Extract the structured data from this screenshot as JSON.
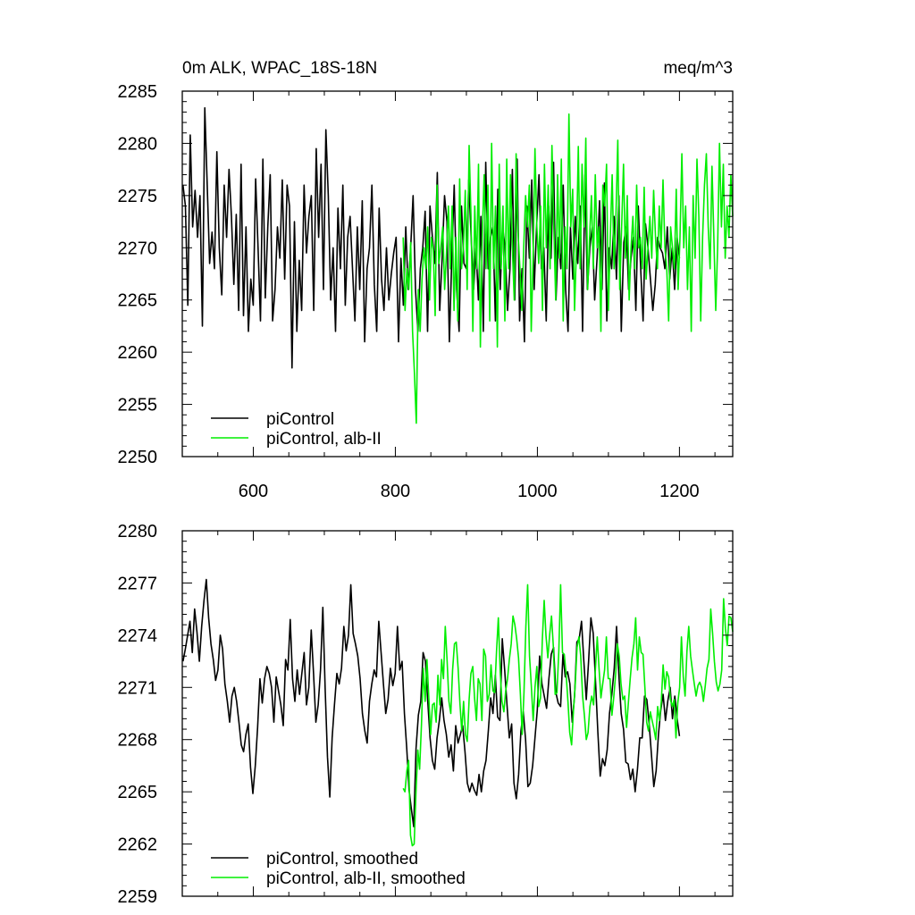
{
  "chart_data": [
    {
      "type": "line",
      "title_left": "0m ALK, WPAC_18S-18N",
      "title_right": "meq/m^3",
      "xlabel": "",
      "ylabel": "",
      "xlim": [
        500,
        1275
      ],
      "ylim": [
        2250,
        2285
      ],
      "x_ticks": [
        600,
        800,
        1000,
        1200
      ],
      "x_tick_labels": [
        "600",
        "800",
        "1000",
        "1200"
      ],
      "y_ticks": [
        2250,
        2255,
        2260,
        2265,
        2270,
        2275,
        2280,
        2285
      ],
      "y_tick_labels": [
        "2250",
        "2255",
        "2260",
        "2265",
        "2270",
        "2275",
        "2280",
        "2285"
      ],
      "grid": false,
      "legend_position": "bottom-left",
      "series": [
        {
          "name": "piControl",
          "color": "#000000",
          "x_start": 501,
          "x_step": 3,
          "values": [
            2276,
            2274,
            2264.5,
            2280.8,
            2272,
            2275.5,
            2271,
            2275,
            2262.5,
            2283.4,
            2276,
            2268.5,
            2271.5,
            2268,
            2279.2,
            2270,
            2265.5,
            2276,
            2271,
            2277.5,
            2273,
            2266.5,
            2273.2,
            2264,
            2278,
            2263.5,
            2272,
            2262,
            2267,
            2264.5,
            2276.6,
            2270,
            2263,
            2278.5,
            2265.2,
            2272,
            2277,
            2263,
            2266,
            2272,
            2269,
            2276.5,
            2267,
            2276,
            2274,
            2258.5,
            2272.5,
            2262,
            2268.8,
            2264,
            2276,
            2269.5,
            2273,
            2275,
            2264,
            2279.5,
            2271,
            2278,
            2266,
            2281.3,
            2275,
            2265,
            2270,
            2262,
            2273.8,
            2268,
            2276,
            2264.5,
            2271,
            2273,
            2268,
            2263,
            2272,
            2266,
            2274.5,
            2261,
            2268,
            2270,
            2276,
            2266.5,
            2262,
            2273.8,
            2267,
            2264,
            2270,
            2265,
            2267.5,
            2269.5,
            2271,
            2261,
            2269,
            2264.5,
            2272,
            2266,
            2270,
            2275,
            2266,
            2262,
            2268,
            2270,
            2273.5,
            2262,
            2274,
            2271,
            2268.5,
            2277.2,
            2264,
            2269,
            2275,
            2272.5,
            2261,
            2269,
            2276,
            2266,
            2262,
            2274,
            2268.5,
            2268,
            2276.5,
            2271,
            2266,
            2270,
            2265,
            2273,
            2262,
            2278.2,
            2268,
            2271,
            2272,
            2263,
            2275.6,
            2266,
            2272,
            2270,
            2264,
            2268,
            2277.5,
            2265,
            2278.5,
            2263,
            2268,
            2261,
            2274,
            2269,
            2276.5,
            2266,
            2272,
            2277,
            2268,
            2270,
            2263,
            2274,
            2269,
            2278.2,
            2265,
            2271,
            2268,
            2276,
            2266,
            2262,
            2272,
            2267,
            2273,
            2268.5,
            2274,
            2262,
            2277,
            2266,
            2270,
            2272,
            2265,
            2269,
            2274.5,
            2266,
            2276.2,
            2263,
            2270,
            2268,
            2273,
            2267,
            2275,
            2262,
            2270.5,
            2272,
            2266,
            2269,
            2271,
            2264,
            2274,
            2268,
            2263,
            2272.3,
            2270,
            2267,
            2264,
            2266.5,
            2271,
            2270,
            2269.5,
            2268,
            2272,
            2267,
            2270,
            2266,
            2271,
            2269
          ],
          "x_end": 1200
        },
        {
          "name": "piControl, alb-II",
          "color": "#00ee00",
          "x_start": 811,
          "x_step": 3,
          "values": [
            2271,
            2264,
            2268,
            2266,
            2270.5,
            2262,
            2258,
            2253.2,
            2266,
            2262,
            2267,
            2270,
            2268,
            2272,
            2265,
            2271,
            2269.8,
            2263.5,
            2276,
            2268.5,
            2270,
            2272,
            2266,
            2269.5,
            2274,
            2268,
            2274,
            2264,
            2271,
            2263,
            2276.6,
            2268,
            2270,
            2275.5,
            2266,
            2279.8,
            2273,
            2262,
            2274,
            2268,
            2278,
            2260.5,
            2271,
            2277,
            2268,
            2276,
            2263,
            2280,
            2268,
            2274,
            2260.5,
            2278,
            2268,
            2274,
            2263,
            2278.5,
            2268,
            2277,
            2270,
            2265,
            2279,
            2271.5,
            2268,
            2264,
            2270,
            2275,
            2272,
            2276,
            2262,
            2269,
            2279.5,
            2272,
            2268.5,
            2274,
            2264,
            2278,
            2270,
            2276,
            2268,
            2279.8,
            2272,
            2265,
            2277,
            2269,
            2278.5,
            2263,
            2272,
            2268,
            2282.8,
            2272,
            2275.6,
            2264,
            2270,
            2279.7,
            2268,
            2278,
            2272,
            2280.5,
            2266,
            2271,
            2275,
            2268,
            2277,
            2270,
            2272,
            2262,
            2276,
            2274,
            2278,
            2264,
            2271,
            2277,
            2268,
            2273,
            2280.3,
            2266,
            2272,
            2278,
            2269,
            2275,
            2265,
            2270,
            2273,
            2268,
            2276,
            2270,
            2271,
            2268,
            2275.8,
            2267,
            2270,
            2273,
            2269,
            2275.5,
            2271,
            2268,
            2274,
            2270,
            2276.5,
            2270,
            2268,
            2263,
            2272,
            2270,
            2268,
            2275.6,
            2266,
            2271,
            2279,
            2270,
            2274,
            2266,
            2272,
            2262,
            2275,
            2269,
            2278.5,
            2273,
            2263,
            2271,
            2276,
            2279,
            2272,
            2268,
            2277.8,
            2271,
            2264,
            2270,
            2280,
            2272,
            2278,
            2269,
            2274,
            2271,
            2277,
            2273
          ],
          "x_end": 1275
        }
      ]
    },
    {
      "type": "line",
      "xlim": [
        500,
        1275
      ],
      "ylim": [
        2259,
        2280
      ],
      "x_ticks": [
        600,
        800,
        1000,
        1200
      ],
      "y_ticks": [
        2259,
        2262,
        2265,
        2268,
        2271,
        2274,
        2277,
        2280
      ],
      "y_tick_labels": [
        "2259",
        "2262",
        "2265",
        "2268",
        "2271",
        "2274",
        "2277",
        "2280"
      ],
      "grid": false,
      "legend_position": "bottom-left",
      "series": [
        {
          "name": "piControl, smoothed",
          "color": "#000000",
          "x_start": 501,
          "x_step": 3,
          "values": [
            2272.5,
            2273.2,
            2274,
            2274.8,
            2273,
            2275.5,
            2274.2,
            2272.5,
            2274.5,
            2276,
            2277.2,
            2275,
            2273.5,
            2272.6,
            2271.4,
            2272,
            2274,
            2273.2,
            2271.2,
            2270.2,
            2269,
            2270.5,
            2271,
            2270.2,
            2269,
            2267.7,
            2267.3,
            2268.3,
            2268.9,
            2266.4,
            2264.9,
            2266.5,
            2268.7,
            2271.5,
            2270.1,
            2271.5,
            2272.2,
            2271.8,
            2271,
            2269,
            2271.6,
            2270.8,
            2270,
            2268.8,
            2272.6,
            2272,
            2274.9,
            2271.5,
            2270.2,
            2272,
            2270.6,
            2271.8,
            2273,
            2270,
            2271,
            2274.3,
            2271.8,
            2269,
            2270,
            2272,
            2275.6,
            2270.9,
            2267,
            2264.7,
            2268.1,
            2270,
            2271.8,
            2271.2,
            2272.1,
            2274.5,
            2273.1,
            2274,
            2276.9,
            2274.1,
            2273.5,
            2272.8,
            2271.5,
            2269.5,
            2268.5,
            2267.8,
            2270.2,
            2271.2,
            2272,
            2271.6,
            2274.8,
            2273,
            2271.2,
            2269.5,
            2270.3,
            2272.1,
            2271.1,
            2271.8,
            2274.5,
            2272,
            2272.5,
            2269.5,
            2267.5,
            2265.1,
            2264,
            2263,
            2267.5,
            2269.4,
            2270.2,
            2273,
            2272.5,
            2270.2,
            2268.1,
            2266.8,
            2266.3,
            2268.1,
            2269.1,
            2270.4,
            2269.1,
            2268.3,
            2267,
            2267.7,
            2266.2,
            2268.8,
            2267.8,
            2268.3,
            2268.8,
            2267.3,
            2265.5,
            2265,
            2265.5,
            2265.1,
            2264.8,
            2266,
            2265,
            2266.2,
            2266.8,
            2268.5,
            2270.4,
            2269.5,
            2271.7,
            2269.3,
            2269.1,
            2273.8,
            2272,
            2270,
            2268.1,
            2268.9,
            2265.5,
            2264.6,
            2266,
            2268.5,
            2269.6,
            2268,
            2265.3,
            2265.5,
            2266.5,
            2268.1,
            2269.7,
            2272.8,
            2271.2,
            2270.5,
            2269.8,
            2271.5,
            2272.9,
            2273.3,
            2270.7,
            2270.1,
            2269.9,
            2272.9,
            2271.6,
            2271.9,
            2271.2,
            2269,
            2270.5,
            2273.6,
            2273.8,
            2274.8,
            2272.5,
            2270.3,
            2272.5,
            2275,
            2274.1,
            2271.3,
            2268.4,
            2265.9,
            2266.9,
            2266.5,
            2267.4,
            2269.5,
            2270.6,
            2272.1,
            2274.5,
            2271.7,
            2269.5,
            2268.6,
            2266.7,
            2266.6,
            2265.7,
            2266.3,
            2265,
            2266.3,
            2268.1,
            2268.1,
            2270.5,
            2270.3,
            2268.9,
            2267.1,
            2265.3,
            2266.2,
            2268.3,
            2269.7,
            2270.6,
            2269.1,
            2270.2,
            2271,
            2269.2,
            2270.5,
            2269.2,
            2268.2
          ],
          "x_end": 1200
        },
        {
          "name": "piControl, alb-II, smoothed",
          "color": "#00ee00",
          "x_start": 811,
          "x_step": 3,
          "values": [
            2265.2,
            2265,
            2266.2,
            2266.8,
            2262.5,
            2261.9,
            2262,
            2264.9,
            2267.4,
            2266.3,
            2268.9,
            2272.1,
            2270.2,
            2272.6,
            2270.4,
            2268.3,
            2270,
            2270.1,
            2269,
            2271.7,
            2270,
            2272.6,
            2271.5,
            2274.5,
            2272.5,
            2270.2,
            2269.5,
            2272,
            2273.5,
            2273.6,
            2272.1,
            2270.1,
            2268.5,
            2270.2,
            2268.3,
            2267.9,
            2270.3,
            2271.8,
            2272.2,
            2270.4,
            2269.1,
            2271.5,
            2271.2,
            2269.1,
            2273.2,
            2272.8,
            2270.2,
            2270.6,
            2272.3,
            2270.8,
            2270.7,
            2273.1,
            2275,
            2271.9,
            2270.2,
            2269.6,
            2270.8,
            2271.5,
            2272.6,
            2273.5,
            2275.1,
            2274.6,
            2273.8,
            2272.7,
            2270.7,
            2268.3,
            2270.7,
            2274.5,
            2276.9,
            2272.8,
            2271.1,
            2269.1,
            2271,
            2272.2,
            2269.9,
            2270.4,
            2273.7,
            2276,
            2274,
            2272.7,
            2274,
            2275.1,
            2273.4,
            2270.6,
            2270.7,
            2273.1,
            2276.9,
            2273,
            2272.9,
            2271.8,
            2270.2,
            2268.4,
            2267.7,
            2269.6,
            2271.2,
            2273.3,
            2273.9,
            2272.8,
            2270.5,
            2269.4,
            2268,
            2268.4,
            2269.9,
            2270.5,
            2270,
            2272,
            2273.9,
            2272.1,
            2270.4,
            2271.2,
            2272,
            2273.9,
            2271.5,
            2271.5,
            2269.4,
            2270.4,
            2271.7,
            2273.5,
            2272.8,
            2271.2,
            2270.3,
            2270.5,
            2268.7,
            2270.1,
            2271.5,
            2272.7,
            2273.5,
            2275,
            2272,
            2273.9,
            2273,
            2272.9,
            2271,
            2269,
            2268.5,
            2269.6,
            2269.1,
            2268.6,
            2268,
            2269.9,
            2269.1,
            2270.2,
            2272.3,
            2270.9,
            2271.9,
            2271.6,
            2270.3,
            2269.9,
            2270.3,
            2268.1,
            2270.1,
            2271,
            2273.9,
            2271.6,
            2270.5,
            2273.1,
            2274.5,
            2272.8,
            2272,
            2271.2,
            2270.5,
            2271.1,
            2271.3,
            2271,
            2270.2,
            2271.1,
            2272.1,
            2272.6,
            2275.5,
            2274.1,
            2272.5,
            2271.3,
            2270.8,
            2271.2,
            2272,
            2276.1,
            2274.4,
            2273.4,
            2275.1,
            2275,
            2274.2
          ],
          "x_end": 1275
        }
      ]
    }
  ]
}
